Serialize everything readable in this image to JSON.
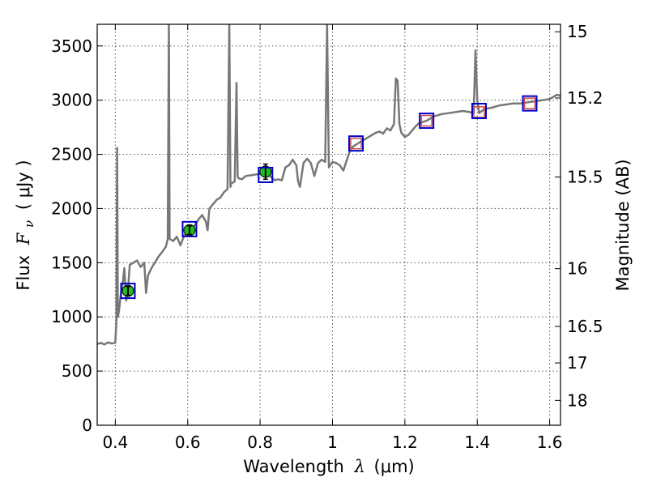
{
  "chart_data": {
    "type": "line",
    "title": "",
    "xlabel": "Wavelength",
    "xlabel_symbol": "λ",
    "xlabel_unit": "(μm)",
    "ylabel": "Flux",
    "ylabel_symbol": "F",
    "ylabel_subscript": "ν",
    "ylabel_unit": "( μJy )",
    "ylabel_right": "Magnitude (AB)",
    "xlim": [
      0.35,
      1.63
    ],
    "ylim": [
      0,
      3700
    ],
    "grid": true,
    "x_ticks": [
      0.4,
      0.6,
      0.8,
      1.0,
      1.2,
      1.4,
      1.6
    ],
    "x_tick_labels": [
      "0.4",
      "0.6",
      "0.8",
      "1",
      "1.2",
      "1.4",
      "1.6"
    ],
    "y_ticks": [
      0,
      500,
      1000,
      1500,
      2000,
      2500,
      3000,
      3500
    ],
    "y_tick_labels": [
      "0",
      "500",
      "1000",
      "1500",
      "2000",
      "2500",
      "3000",
      "3500"
    ],
    "right_ticks": [
      {
        "label": "15",
        "flux": 3631
      },
      {
        "label": "15.2",
        "flux": 3020
      },
      {
        "label": "15.5",
        "flux": 2291
      },
      {
        "label": "16",
        "flux": 1445
      },
      {
        "label": "16.5",
        "flux": 912
      },
      {
        "label": "17",
        "flux": 575
      },
      {
        "label": "18",
        "flux": 229
      }
    ],
    "colors": {
      "spectrum": "#777777",
      "model_box": "#0000cc",
      "observed": "#22bb22",
      "synthetic": "#cc4444",
      "grid": "#555555"
    },
    "series": [
      {
        "kind": "spectrum",
        "points": [
          [
            0.35,
            750
          ],
          [
            0.36,
            760
          ],
          [
            0.37,
            745
          ],
          [
            0.38,
            765
          ],
          [
            0.39,
            755
          ],
          [
            0.4,
            760
          ],
          [
            0.403,
            950
          ],
          [
            0.405,
            2560
          ],
          [
            0.407,
            1000
          ],
          [
            0.41,
            1050
          ],
          [
            0.415,
            1200
          ],
          [
            0.42,
            1300
          ],
          [
            0.425,
            1450
          ],
          [
            0.43,
            1150
          ],
          [
            0.435,
            1250
          ],
          [
            0.44,
            1480
          ],
          [
            0.45,
            1500
          ],
          [
            0.46,
            1520
          ],
          [
            0.47,
            1460
          ],
          [
            0.48,
            1500
          ],
          [
            0.485,
            1220
          ],
          [
            0.49,
            1380
          ],
          [
            0.5,
            1450
          ],
          [
            0.52,
            1560
          ],
          [
            0.53,
            1600
          ],
          [
            0.54,
            1650
          ],
          [
            0.545,
            1720
          ],
          [
            0.548,
            3700
          ],
          [
            0.55,
            1720
          ],
          [
            0.56,
            1700
          ],
          [
            0.57,
            1740
          ],
          [
            0.58,
            1660
          ],
          [
            0.59,
            1750
          ],
          [
            0.6,
            1780
          ],
          [
            0.61,
            1800
          ],
          [
            0.62,
            1850
          ],
          [
            0.63,
            1900
          ],
          [
            0.64,
            1940
          ],
          [
            0.65,
            1880
          ],
          [
            0.655,
            1800
          ],
          [
            0.66,
            2000
          ],
          [
            0.67,
            2040
          ],
          [
            0.68,
            2080
          ],
          [
            0.69,
            2100
          ],
          [
            0.7,
            2150
          ],
          [
            0.71,
            2180
          ],
          [
            0.715,
            3700
          ],
          [
            0.718,
            2200
          ],
          [
            0.72,
            2230
          ],
          [
            0.73,
            2250
          ],
          [
            0.735,
            3160
          ],
          [
            0.738,
            2300
          ],
          [
            0.74,
            2280
          ],
          [
            0.75,
            2270
          ],
          [
            0.76,
            2300
          ],
          [
            0.78,
            2310
          ],
          [
            0.8,
            2320
          ],
          [
            0.82,
            2330
          ],
          [
            0.83,
            2290
          ],
          [
            0.84,
            2260
          ],
          [
            0.85,
            2270
          ],
          [
            0.86,
            2260
          ],
          [
            0.87,
            2380
          ],
          [
            0.88,
            2400
          ],
          [
            0.89,
            2450
          ],
          [
            0.9,
            2400
          ],
          [
            0.905,
            2250
          ],
          [
            0.91,
            2200
          ],
          [
            0.92,
            2420
          ],
          [
            0.93,
            2460
          ],
          [
            0.94,
            2420
          ],
          [
            0.95,
            2300
          ],
          [
            0.96,
            2420
          ],
          [
            0.97,
            2450
          ],
          [
            0.98,
            2430
          ],
          [
            0.985,
            3700
          ],
          [
            0.99,
            2380
          ],
          [
            1.0,
            2430
          ],
          [
            1.01,
            2420
          ],
          [
            1.02,
            2400
          ],
          [
            1.03,
            2350
          ],
          [
            1.04,
            2450
          ],
          [
            1.05,
            2550
          ],
          [
            1.06,
            2580
          ],
          [
            1.07,
            2600
          ],
          [
            1.08,
            2620
          ],
          [
            1.09,
            2640
          ],
          [
            1.1,
            2660
          ],
          [
            1.11,
            2680
          ],
          [
            1.12,
            2700
          ],
          [
            1.13,
            2710
          ],
          [
            1.14,
            2690
          ],
          [
            1.15,
            2740
          ],
          [
            1.16,
            2720
          ],
          [
            1.17,
            2780
          ],
          [
            1.175,
            3200
          ],
          [
            1.18,
            3180
          ],
          [
            1.185,
            2780
          ],
          [
            1.19,
            2700
          ],
          [
            1.2,
            2660
          ],
          [
            1.21,
            2680
          ],
          [
            1.22,
            2720
          ],
          [
            1.23,
            2760
          ],
          [
            1.24,
            2790
          ],
          [
            1.25,
            2800
          ],
          [
            1.26,
            2810
          ],
          [
            1.27,
            2830
          ],
          [
            1.28,
            2850
          ],
          [
            1.29,
            2860
          ],
          [
            1.3,
            2870
          ],
          [
            1.32,
            2880
          ],
          [
            1.34,
            2890
          ],
          [
            1.36,
            2900
          ],
          [
            1.38,
            2890
          ],
          [
            1.39,
            2880
          ],
          [
            1.395,
            3460
          ],
          [
            1.4,
            3000
          ],
          [
            1.405,
            2880
          ],
          [
            1.42,
            2920
          ],
          [
            1.44,
            2930
          ],
          [
            1.46,
            2950
          ],
          [
            1.48,
            2960
          ],
          [
            1.5,
            2970
          ],
          [
            1.52,
            2970
          ],
          [
            1.54,
            2980
          ],
          [
            1.56,
            2990
          ],
          [
            1.58,
            3000
          ],
          [
            1.6,
            3010
          ],
          [
            1.62,
            3050
          ],
          [
            1.63,
            3040
          ]
        ]
      },
      {
        "kind": "model_boxes",
        "points": [
          [
            0.435,
            1240
          ],
          [
            0.605,
            1810
          ],
          [
            0.815,
            2310
          ],
          [
            1.065,
            2600
          ],
          [
            1.26,
            2810
          ],
          [
            1.405,
            2900
          ],
          [
            1.545,
            2970
          ]
        ]
      },
      {
        "kind": "observed_points",
        "points": [
          {
            "x": 0.435,
            "y": 1240,
            "err": 40
          },
          {
            "x": 0.605,
            "y": 1800,
            "err": 40
          },
          {
            "x": 0.815,
            "y": 2340,
            "err": 70
          }
        ]
      },
      {
        "kind": "synthetic_points",
        "points": [
          [
            1.065,
            2600
          ],
          [
            1.26,
            2810
          ],
          [
            1.405,
            2890
          ],
          [
            1.545,
            2970
          ]
        ]
      }
    ]
  }
}
